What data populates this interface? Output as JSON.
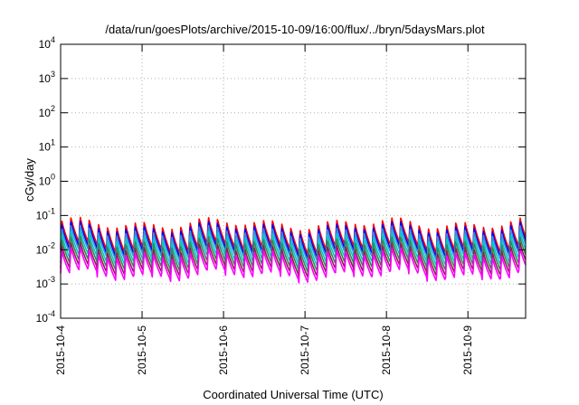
{
  "chart_data": {
    "type": "line",
    "title": "/data/run/goesPlots/archive/2015-10-09/16:00/flux/../bryn/5daysMars.plot",
    "xlabel": "Coordinated Universal Time (UTC)",
    "ylabel": "cGy/day",
    "yscale": "log",
    "ylim": [
      0.0001,
      10000
    ],
    "y_ticks": [
      {
        "value": 0.0001,
        "base": "10",
        "exp": "-4"
      },
      {
        "value": 0.001,
        "base": "10",
        "exp": "-3"
      },
      {
        "value": 0.01,
        "base": "10",
        "exp": "-2"
      },
      {
        "value": 0.1,
        "base": "10",
        "exp": "-1"
      },
      {
        "value": 1,
        "base": "10",
        "exp": "0"
      },
      {
        "value": 10,
        "base": "10",
        "exp": "1"
      },
      {
        "value": 100,
        "base": "10",
        "exp": "2"
      },
      {
        "value": 1000,
        "base": "10",
        "exp": "3"
      },
      {
        "value": 10000,
        "base": "10",
        "exp": "4"
      }
    ],
    "xlim": [
      "2015-10-04T00:00",
      "2015-10-09T17:00"
    ],
    "x_ticks": [
      "2015-10-4",
      "2015-10-5",
      "2015-10-6",
      "2015-10-7",
      "2015-10-8",
      "2015-10-9"
    ],
    "x_tick_dates": [
      "2015-10-04",
      "2015-10-05",
      "2015-10-06",
      "2015-10-07",
      "2015-10-08",
      "2015-10-09"
    ],
    "grid": true,
    "legend": "none",
    "series_pattern": "sawtooth, ~2.7 h period",
    "series": [
      {
        "color": "#ff0000",
        "peak": 0.065,
        "trough": 0.011
      },
      {
        "color": "#0000ff",
        "peak": 0.05,
        "trough": 0.0085
      },
      {
        "color": "#3a8fd8",
        "peak": 0.038,
        "trough": 0.0068
      },
      {
        "color": "#00c8c8",
        "peak": 0.026,
        "trough": 0.0048
      },
      {
        "color": "#2e8b57",
        "peak": 0.018,
        "trough": 0.0034
      },
      {
        "color": "#8b2252",
        "peak": 0.012,
        "trough": 0.0024
      },
      {
        "color": "#ff00ff",
        "peak": 0.0085,
        "trough": 0.0017
      }
    ]
  }
}
